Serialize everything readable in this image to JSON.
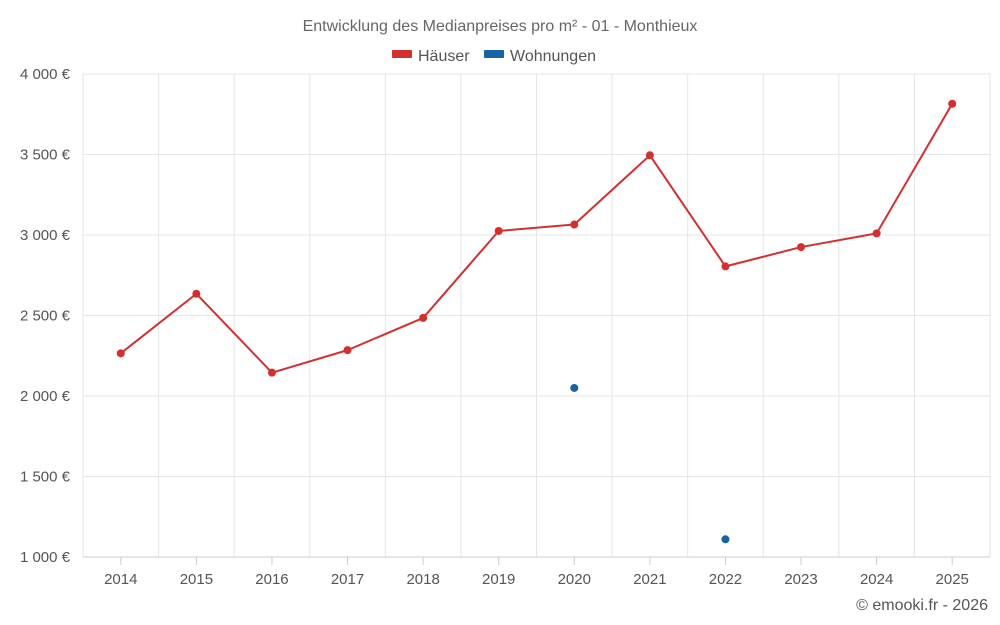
{
  "chart_data": {
    "type": "line",
    "title": "Entwicklung des Medianpreises pro m² - 01 - Monthieux",
    "categories": [
      "2014",
      "2015",
      "2016",
      "2017",
      "2018",
      "2019",
      "2020",
      "2021",
      "2022",
      "2023",
      "2024",
      "2025"
    ],
    "series": [
      {
        "name": "Häuser",
        "color": "#d32f2f",
        "values": [
          2265,
          2635,
          2145,
          2285,
          2485,
          3025,
          3065,
          3495,
          2805,
          2925,
          3010,
          3815
        ]
      },
      {
        "name": "Wohnungen",
        "color": "#1565a6",
        "values": [
          null,
          null,
          null,
          null,
          null,
          null,
          2050,
          null,
          1110,
          null,
          null,
          null
        ]
      }
    ],
    "y_ticks": [
      "1 000 €",
      "1 500 €",
      "2 000 €",
      "2 500 €",
      "3 000 €",
      "3 500 €",
      "4 000 €"
    ],
    "ylim": [
      1000,
      4000
    ],
    "xlabel": "",
    "ylabel": "",
    "grid": true,
    "legend_position": "top-center"
  },
  "credit": "© emooki.fr - 2026"
}
